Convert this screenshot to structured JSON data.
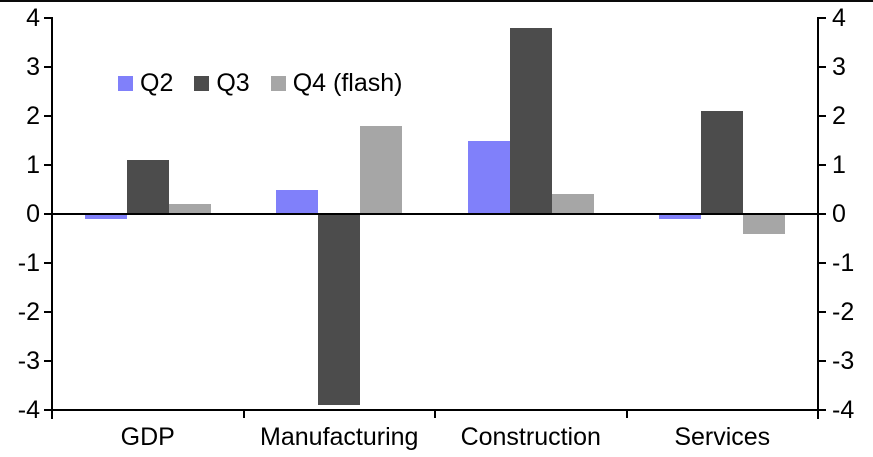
{
  "chart_data": {
    "type": "bar",
    "title": "",
    "xlabel": "",
    "ylabel": "",
    "categories": [
      "GDP",
      "Manufacturing",
      "Construction",
      "Services"
    ],
    "series": [
      {
        "name": "Q2",
        "color": "#8080FA",
        "values": [
          -0.1,
          0.5,
          1.5,
          -0.1
        ]
      },
      {
        "name": "Q3",
        "color": "#4C4C4C",
        "values": [
          1.1,
          -3.9,
          3.8,
          2.1
        ]
      },
      {
        "name": "Q4 (flash)",
        "color": "#A6A6A6",
        "values": [
          0.2,
          1.8,
          0.4,
          -0.4
        ]
      }
    ],
    "ylim": [
      -4,
      4
    ],
    "yticks": [
      4,
      3,
      2,
      1,
      0,
      -1,
      -2,
      -3,
      -4
    ],
    "dual_y_axis": true,
    "grid": false,
    "legend_position": "inside-top-left",
    "axis_color": "#000000",
    "background_color": "#FFFFFF"
  }
}
